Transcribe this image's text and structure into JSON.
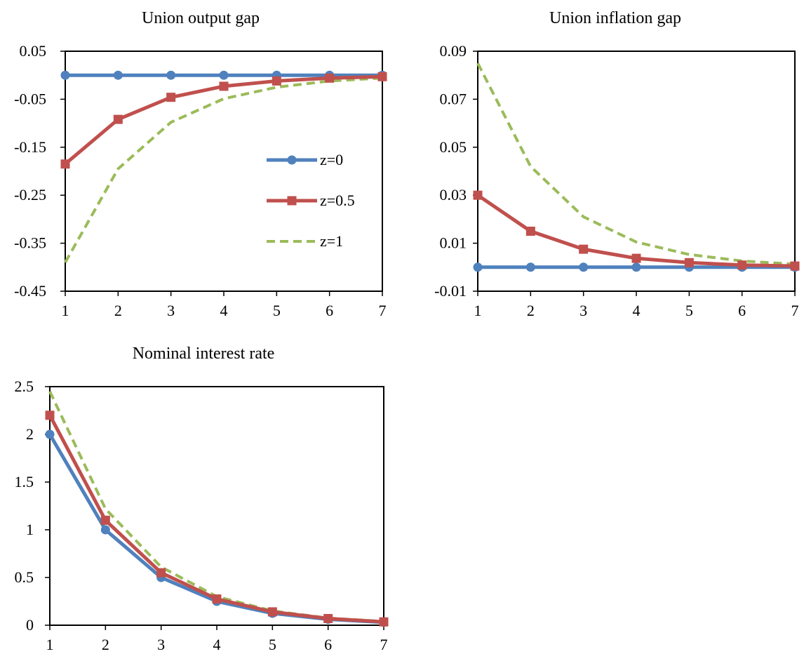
{
  "colors": {
    "z0": "#4F81BD",
    "z05": "#C0504D",
    "z1": "#9BBB59",
    "frame": "#000000"
  },
  "legend": {
    "placement": "inside-right of first panel",
    "entries": [
      {
        "label": "z=0",
        "color": "#4F81BD",
        "marker": "circle",
        "dash": "solid"
      },
      {
        "label": "z=0.5",
        "color": "#C0504D",
        "marker": "square",
        "dash": "solid"
      },
      {
        "label": "z=1",
        "color": "#9BBB59",
        "marker": "none",
        "dash": "dashed"
      }
    ]
  },
  "chart_data": [
    {
      "type": "line",
      "title": "Union output gap",
      "x": [
        1,
        2,
        3,
        4,
        5,
        6,
        7
      ],
      "xticks": [
        "1",
        "2",
        "3",
        "4",
        "5",
        "6",
        "7"
      ],
      "yticks": [
        "0.05",
        "-0.05",
        "-0.15",
        "-0.25",
        "-0.35",
        "-0.45"
      ],
      "ytick_values": [
        0.05,
        -0.05,
        -0.15,
        -0.25,
        -0.35,
        -0.45
      ],
      "ylim": [
        -0.45,
        0.05
      ],
      "grid": false,
      "series": [
        {
          "name": "z=0",
          "values": [
            0,
            0,
            0,
            0,
            0,
            0,
            0
          ]
        },
        {
          "name": "z=0.5",
          "values": [
            -0.185,
            -0.092,
            -0.046,
            -0.023,
            -0.012,
            -0.006,
            -0.003
          ]
        },
        {
          "name": "z=1",
          "values": [
            -0.39,
            -0.195,
            -0.098,
            -0.049,
            -0.025,
            -0.012,
            -0.006
          ]
        }
      ]
    },
    {
      "type": "line",
      "title": "Union inflation gap",
      "x": [
        1,
        2,
        3,
        4,
        5,
        6,
        7
      ],
      "xticks": [
        "1",
        "2",
        "3",
        "4",
        "5",
        "6",
        "7"
      ],
      "yticks": [
        "0.09",
        "0.07",
        "0.05",
        "0.03",
        "0.01",
        "-0.01"
      ],
      "ytick_values": [
        0.09,
        0.07,
        0.05,
        0.03,
        0.01,
        -0.01
      ],
      "ylim": [
        -0.01,
        0.09
      ],
      "grid": false,
      "series": [
        {
          "name": "z=0",
          "values": [
            0,
            0,
            0,
            0,
            0,
            0,
            0
          ]
        },
        {
          "name": "z=0.5",
          "values": [
            0.03,
            0.015,
            0.0075,
            0.0037,
            0.0019,
            0.0009,
            0.0005
          ]
        },
        {
          "name": "z=1",
          "values": [
            0.085,
            0.042,
            0.021,
            0.0105,
            0.0053,
            0.0026,
            0.0013
          ]
        }
      ]
    },
    {
      "type": "line",
      "title": "Nominal interest rate",
      "x": [
        1,
        2,
        3,
        4,
        5,
        6,
        7
      ],
      "xticks": [
        "1",
        "2",
        "3",
        "4",
        "5",
        "6",
        "7"
      ],
      "yticks": [
        "2.5",
        "2",
        "1.5",
        "1",
        "0.5",
        "0"
      ],
      "ytick_values": [
        2.5,
        2,
        1.5,
        1,
        0.5,
        0
      ],
      "ylim": [
        0,
        2.5
      ],
      "grid": false,
      "series": [
        {
          "name": "z=0",
          "values": [
            2.0,
            1.0,
            0.5,
            0.25,
            0.125,
            0.0625,
            0.03
          ]
        },
        {
          "name": "z=0.5",
          "values": [
            2.2,
            1.1,
            0.55,
            0.275,
            0.14,
            0.07,
            0.035
          ]
        },
        {
          "name": "z=1",
          "values": [
            2.45,
            1.22,
            0.61,
            0.3,
            0.15,
            0.075,
            0.04
          ]
        }
      ]
    }
  ]
}
